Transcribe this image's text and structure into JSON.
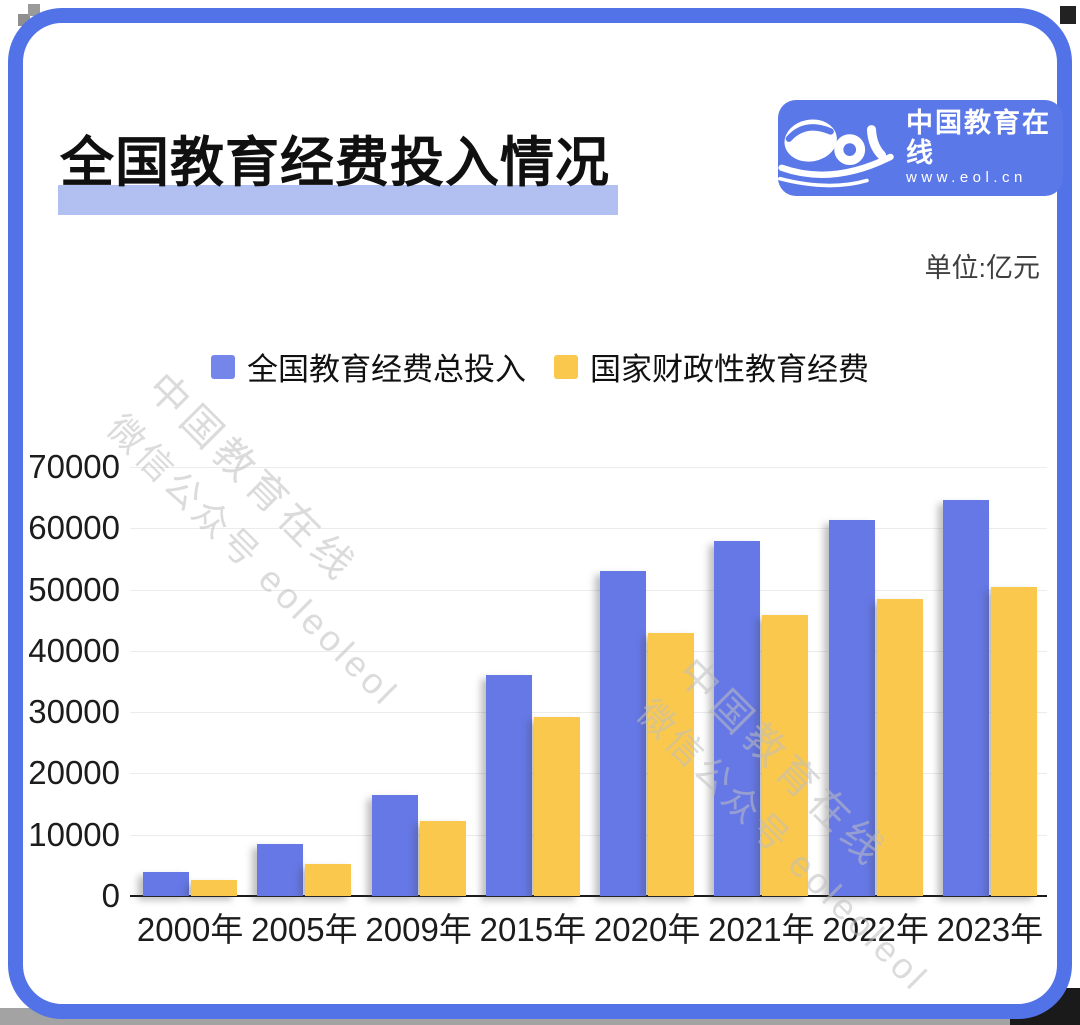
{
  "page": {
    "title": "全国教育经费投入情况",
    "unit_label": "单位:亿元",
    "watermark": {
      "line1": "中国教育在线",
      "line2": "微信公众号 eoleoleol"
    }
  },
  "logo": {
    "wordmark": "eol",
    "name": "中国教育在线",
    "url": "www.eol.cn",
    "bg_color": "#5b78e8"
  },
  "colors": {
    "card_border": "#5173e7",
    "title_highlight": "#b2c0f1",
    "bar_blue": "#6678e6",
    "bar_yellow": "#fac84d",
    "legend_blue": "#7586ea",
    "legend_yellow": "#fac84d",
    "gridline": "#ececec",
    "axis": "#1a1a1a",
    "watermark": "#bfbfbf"
  },
  "chart_data": {
    "type": "bar",
    "title": "全国教育经费投入情况",
    "unit": "亿元",
    "categories": [
      "2000年",
      "2005年",
      "2009年",
      "2015年",
      "2020年",
      "2021年",
      "2022年",
      "2023年"
    ],
    "series": [
      {
        "name": "全国教育经费总投入",
        "color": "#6678e6",
        "values": [
          3849,
          8419,
          16503,
          36129,
          53034,
          57874,
          61329,
          64595
        ]
      },
      {
        "name": "国家财政性教育经费",
        "color": "#fac84d",
        "values": [
          2563,
          5161,
          12231,
          29221,
          42908,
          45835,
          48473,
          50433
        ]
      }
    ],
    "ylim": [
      0,
      70000
    ],
    "yticks": [
      0,
      10000,
      20000,
      30000,
      40000,
      50000,
      60000,
      70000
    ],
    "grid": true,
    "legend_position": "top"
  }
}
